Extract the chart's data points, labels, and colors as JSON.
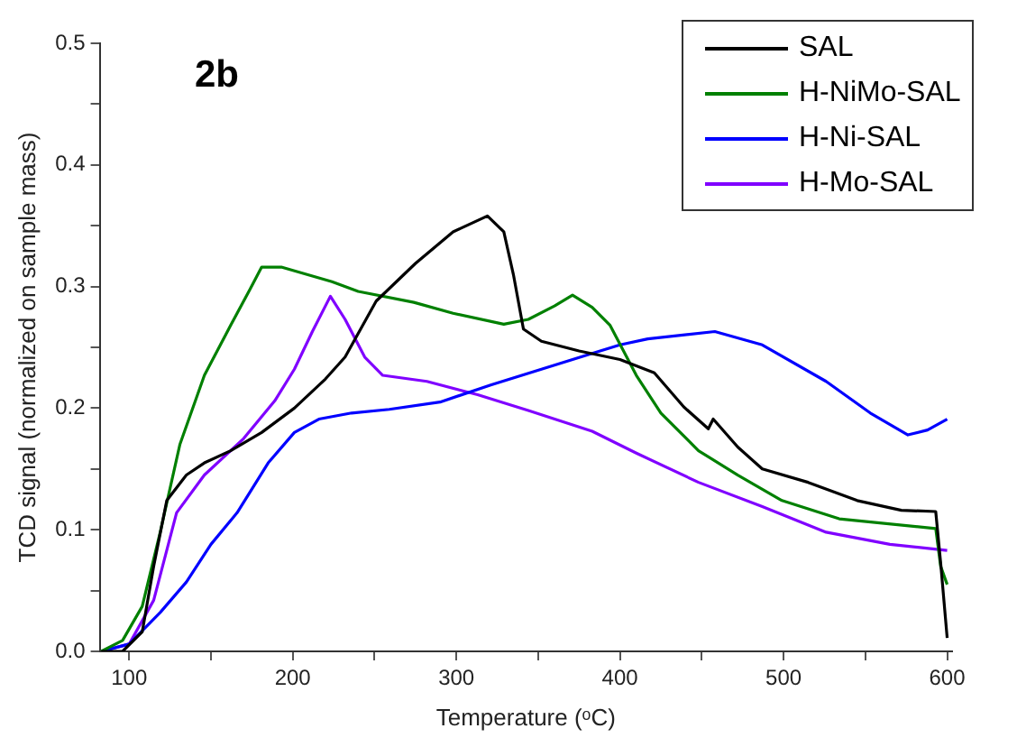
{
  "chart_data": {
    "type": "line",
    "xlabel": "Temperature (ᵒC)",
    "ylabel": "TCD signal (normalized on sample mass)",
    "annotations": [
      "2b"
    ],
    "legend": "top right",
    "grid": false,
    "marker": "none",
    "xlim": [
      82,
      603
    ],
    "xticks": [
      100,
      {
        "value": 150,
        "label": null
      },
      200,
      {
        "value": 250,
        "label": null
      },
      300,
      {
        "value": 350,
        "label": null
      },
      400,
      {
        "value": 450,
        "label": null
      },
      500,
      {
        "value": 550,
        "label": null
      },
      600
    ],
    "ylim": [
      0,
      0.5
    ],
    "yticks": [
      {
        "value": 0,
        "label": "0.0"
      },
      {
        "value": 0.05,
        "label": null
      },
      0.1,
      {
        "value": 0.15,
        "label": null
      },
      0.2,
      {
        "value": 0.25,
        "label": null
      },
      0.3,
      {
        "value": 0.35,
        "label": null
      },
      0.4,
      {
        "value": 0.45,
        "label": null
      },
      0.5
    ],
    "series": [
      {
        "name": "SAL",
        "color": "#000000",
        "x": [
          83,
          96,
          108,
          115,
          123,
          135,
          146,
          162,
          181,
          201,
          220,
          232,
          251,
          275,
          298,
          319,
          329,
          335,
          341,
          352,
          375,
          400,
          421,
          439,
          454,
          457,
          472,
          487,
          515,
          545,
          572,
          593,
          596,
          600
        ],
        "values": [
          0,
          0,
          0.016,
          0.07,
          0.124,
          0.145,
          0.155,
          0.165,
          0.18,
          0.2,
          0.224,
          0.242,
          0.288,
          0.319,
          0.345,
          0.358,
          0.345,
          0.309,
          0.265,
          0.255,
          0.247,
          0.24,
          0.229,
          0.201,
          0.183,
          0.191,
          0.168,
          0.15,
          0.139,
          0.124,
          0.116,
          0.115,
          0.073,
          0.011
        ]
      },
      {
        "name": "H-NiMo-SAL",
        "color": "#008000",
        "x": [
          83,
          96,
          108,
          119,
          131,
          146,
          162,
          174,
          181,
          193,
          224,
          240,
          274,
          298,
          329,
          344,
          360,
          371,
          383,
          394,
          410,
          425,
          448,
          472,
          499,
          534,
          593,
          596,
          600
        ],
        "values": [
          0,
          0.009,
          0.037,
          0.098,
          0.17,
          0.227,
          0.268,
          0.298,
          0.316,
          0.316,
          0.304,
          0.296,
          0.287,
          0.278,
          0.269,
          0.273,
          0.284,
          0.293,
          0.283,
          0.268,
          0.227,
          0.196,
          0.165,
          0.145,
          0.124,
          0.109,
          0.101,
          0.07,
          0.055
        ]
      },
      {
        "name": "H-Ni-SAL",
        "color": "#0000ff",
        "x": [
          83,
          100,
          119,
          135,
          150,
          166,
          185,
          201,
          216,
          236,
          259,
          290,
          321,
          352,
          383,
          400,
          417,
          458,
          487,
          526,
          553,
          576,
          588,
          600
        ],
        "values": [
          0,
          0.006,
          0.032,
          0.057,
          0.088,
          0.114,
          0.155,
          0.18,
          0.191,
          0.196,
          0.199,
          0.205,
          0.219,
          0.232,
          0.245,
          0.252,
          0.257,
          0.263,
          0.252,
          0.222,
          0.196,
          0.178,
          0.182,
          0.191
        ]
      },
      {
        "name": "H-Mo-SAL",
        "color": "#8000ff",
        "x": [
          83,
          100,
          115,
          129,
          146,
          170,
          189,
          201,
          212,
          223,
          232,
          244,
          255,
          282,
          313,
          344,
          383,
          410,
          448,
          487,
          526,
          565,
          600
        ],
        "values": [
          0,
          0.006,
          0.042,
          0.114,
          0.145,
          0.175,
          0.206,
          0.232,
          0.263,
          0.292,
          0.273,
          0.242,
          0.227,
          0.222,
          0.211,
          0.198,
          0.181,
          0.163,
          0.139,
          0.119,
          0.098,
          0.088,
          0.083
        ]
      }
    ]
  }
}
